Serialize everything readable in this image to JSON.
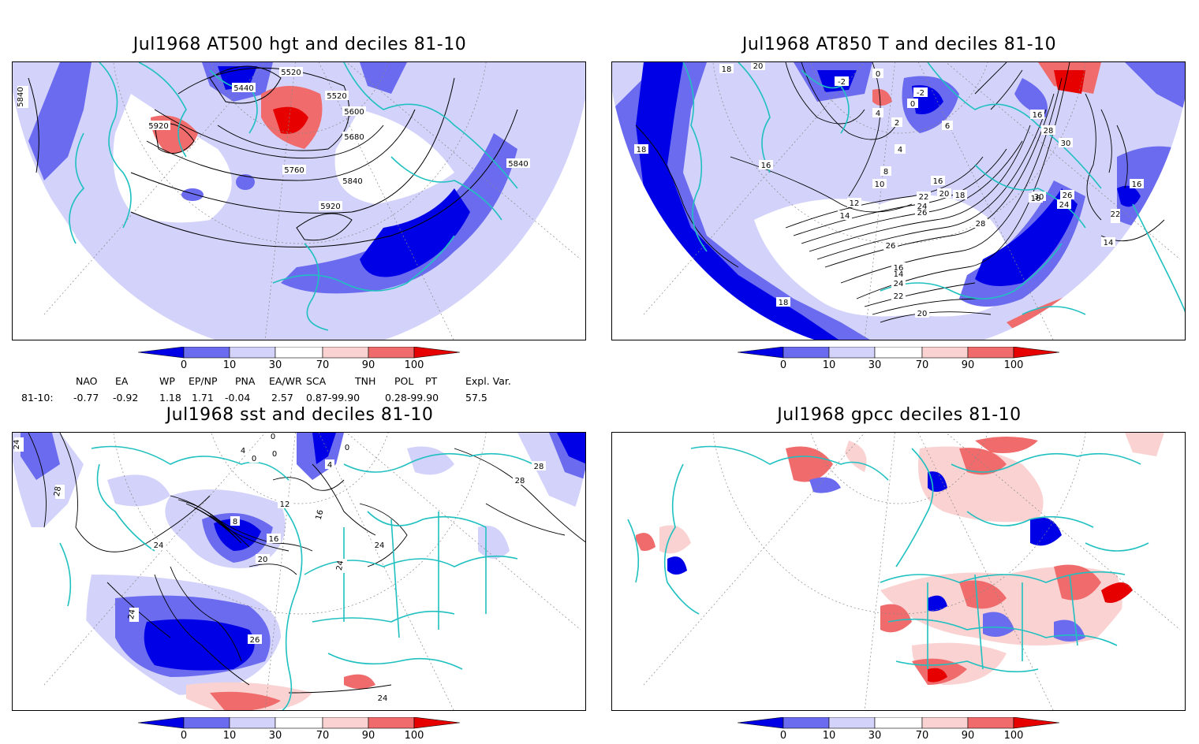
{
  "panels": [
    {
      "title": "Jul1968 AT500 hgt and deciles 81-10",
      "contour_labels": [
        "5840",
        "5440",
        "5520",
        "5520",
        "5600",
        "5680",
        "5760",
        "5840",
        "5920",
        "5920",
        "5840"
      ]
    },
    {
      "title": "Jul1968 AT850 T and deciles 81-10",
      "contour_labels": [
        "18",
        "20",
        "-2",
        "-2",
        "0",
        "0",
        "4",
        "2",
        "4",
        "6",
        "8",
        "10",
        "12",
        "14",
        "16",
        "16",
        "16",
        "18",
        "20",
        "22",
        "24",
        "26",
        "28",
        "30",
        "30",
        "26",
        "24",
        "22",
        "14",
        "18",
        "16",
        "14",
        "24",
        "22",
        "20",
        "18",
        "16",
        "16",
        "26",
        "28",
        "16"
      ]
    },
    {
      "title": "Jul1968 sst and deciles 81-10",
      "contour_labels": [
        "24",
        "28",
        "0",
        "4",
        "0",
        "0",
        "4",
        "0",
        "12",
        "8",
        "16",
        "16",
        "20",
        "24",
        "28",
        "28",
        "24",
        "24",
        "26",
        "24",
        "24"
      ]
    },
    {
      "title": "Jul1968 gpcc deciles 81-10",
      "contour_labels": []
    }
  ],
  "colorbar": {
    "labels": [
      "0",
      "10",
      "30",
      "70",
      "90",
      "100"
    ],
    "colors": [
      "#0000e6",
      "#6b6bf0",
      "#d2d2fa",
      "#ffffff",
      "#fad2d2",
      "#f06b6b",
      "#e60000"
    ]
  },
  "indices": {
    "row_label": "81-10:",
    "names": [
      "NAO",
      "EA",
      "WP",
      "EP/NP",
      "PNA",
      "EA/WR",
      "SCA",
      "TNH",
      "POL",
      "PT",
      "Expl. Var."
    ],
    "values": [
      "-0.77",
      "-0.92",
      "1.18",
      "1.71",
      "-0.04",
      "2.57",
      "0.87-99.90",
      "",
      "0.28-99.90",
      "",
      "57.5"
    ]
  },
  "map_colors": {
    "coast": "#20c0c0",
    "contour": "#000000",
    "grid": "#888888"
  }
}
